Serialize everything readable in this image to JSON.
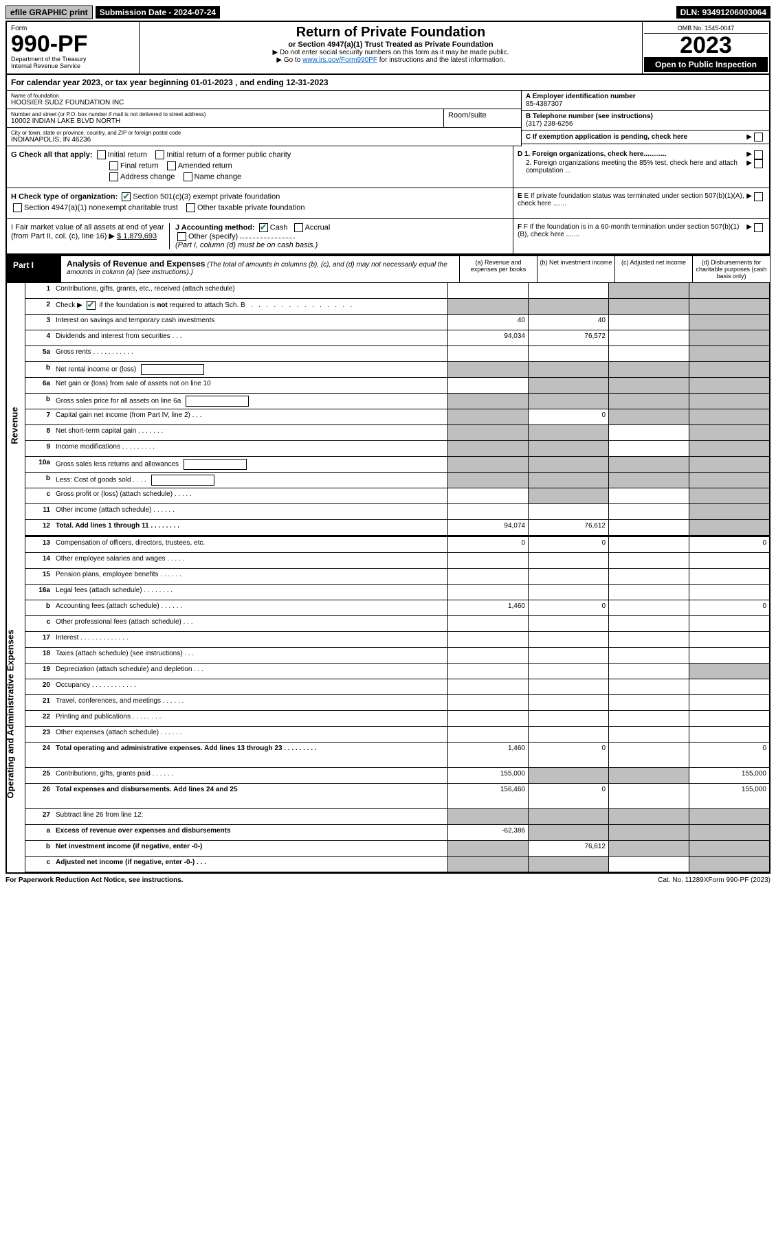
{
  "topbar": {
    "efile": "efile GRAPHIC print",
    "submission": "Submission Date - 2024-07-24",
    "dln": "DLN: 93491206003064"
  },
  "header": {
    "form_label": "Form",
    "form_number": "990-PF",
    "dept1": "Department of the Treasury",
    "dept2": "Internal Revenue Service",
    "title": "Return of Private Foundation",
    "subtitle": "or Section 4947(a)(1) Trust Treated as Private Foundation",
    "instr1": "▶ Do not enter social security numbers on this form as it may be made public.",
    "instr2_pre": "▶ Go to ",
    "instr2_link": "www.irs.gov/Form990PF",
    "instr2_post": " for instructions and the latest information.",
    "omb": "OMB No. 1545-0047",
    "year": "2023",
    "open": "Open to Public Inspection"
  },
  "calyear": "For calendar year 2023, or tax year beginning 01-01-2023                    , and ending 12-31-2023",
  "info": {
    "name_lbl": "Name of foundation",
    "name": "HOOSIER SUDZ FOUNDATION INC",
    "addr_lbl": "Number and street (or P.O. box number if mail is not delivered to street address)",
    "addr": "10002 INDIAN LAKE BLVD NORTH",
    "room_lbl": "Room/suite",
    "city_lbl": "City or town, state or province, country, and ZIP or foreign postal code",
    "city": "INDIANAPOLIS, IN  46236",
    "ein_lbl": "A Employer identification number",
    "ein": "85-4387307",
    "phone_lbl": "B Telephone number (see instructions)",
    "phone": "(317) 238-6256",
    "c_lbl": "C If exemption application is pending, check here",
    "d1": "D 1. Foreign organizations, check here............",
    "d2": "2. Foreign organizations meeting the 85% test, check here and attach computation ...",
    "e": "E  If private foundation status was terminated under section 507(b)(1)(A), check here .......",
    "f": "F  If the foundation is in a 60-month termination under section 507(b)(1)(B), check here .......",
    "g_lbl": "G Check all that apply:",
    "g_opts": [
      "Initial return",
      "Initial return of a former public charity",
      "Final return",
      "Amended return",
      "Address change",
      "Name change"
    ],
    "h_lbl": "H Check type of organization:",
    "h_opts": [
      "Section 501(c)(3) exempt private foundation",
      "Section 4947(a)(1) nonexempt charitable trust",
      "Other taxable private foundation"
    ],
    "i_lbl": "I Fair market value of all assets at end of year (from Part II, col. (c), line 16) ▶",
    "i_val": "$  1,879,693",
    "j_lbl": "J Accounting method:",
    "j_opts": [
      "Cash",
      "Accrual",
      "Other (specify)"
    ],
    "j_note": "(Part I, column (d) must be on cash basis.)"
  },
  "part1": {
    "label": "Part I",
    "title": "Analysis of Revenue and Expenses",
    "note": " (The total of amounts in columns (b), (c), and (d) may not necessarily equal the amounts in column (a) (see instructions).)",
    "cols": {
      "a": "(a)   Revenue and expenses per books",
      "b": "(b)   Net investment income",
      "c": "(c)   Adjusted net income",
      "d": "(d)   Disbursements for charitable purposes (cash basis only)"
    }
  },
  "sidelabels": {
    "revenue": "Revenue",
    "expenses": "Operating and Administrative Expenses"
  },
  "lines": [
    {
      "n": "1",
      "d": "Contributions, gifts, grants, etc., received (attach schedule)",
      "a": "",
      "b": "",
      "c": "grey",
      "dd": "grey"
    },
    {
      "n": "2",
      "d": "Check ▶ ☑ if the foundation is not required to attach Sch. B   .  .  .  .  .  .  .  .  .  .  .  .  .  .  .",
      "a": "grey",
      "b": "grey",
      "c": "grey",
      "dd": "grey",
      "ck": true
    },
    {
      "n": "3",
      "d": "Interest on savings and temporary cash investments",
      "a": "40",
      "b": "40",
      "c": "",
      "dd": "grey"
    },
    {
      "n": "4",
      "d": "Dividends and interest from securities    .   .   .",
      "a": "94,034",
      "b": "76,572",
      "c": "",
      "dd": "grey"
    },
    {
      "n": "5a",
      "d": "Gross rents   .   .   .   .   .   .   .   .   .   .   .",
      "a": "",
      "b": "",
      "c": "",
      "dd": "grey"
    },
    {
      "n": "b",
      "d": "Net rental income or (loss)",
      "a": "grey",
      "b": "grey",
      "c": "grey",
      "dd": "grey",
      "sub": true
    },
    {
      "n": "6a",
      "d": "Net gain or (loss) from sale of assets not on line 10",
      "a": "",
      "b": "grey",
      "c": "grey",
      "dd": "grey"
    },
    {
      "n": "b",
      "d": "Gross sales price for all assets on line 6a",
      "a": "grey",
      "b": "grey",
      "c": "grey",
      "dd": "grey",
      "sub": true
    },
    {
      "n": "7",
      "d": "Capital gain net income (from Part IV, line 2)   .   .   .",
      "a": "grey",
      "b": "0",
      "c": "grey",
      "dd": "grey"
    },
    {
      "n": "8",
      "d": "Net short-term capital gain  .   .   .   .   .   .   .",
      "a": "grey",
      "b": "grey",
      "c": "",
      "dd": "grey"
    },
    {
      "n": "9",
      "d": "Income modifications  .   .   .   .   .   .   .   .   .",
      "a": "grey",
      "b": "grey",
      "c": "",
      "dd": "grey"
    },
    {
      "n": "10a",
      "d": "Gross sales less returns and allowances",
      "a": "grey",
      "b": "grey",
      "c": "grey",
      "dd": "grey",
      "sub": true
    },
    {
      "n": "b",
      "d": "Less: Cost of goods sold   .   .   .   .",
      "a": "grey",
      "b": "grey",
      "c": "grey",
      "dd": "grey",
      "sub": true
    },
    {
      "n": "c",
      "d": "Gross profit or (loss) (attach schedule)   .   .   .   .   .",
      "a": "",
      "b": "grey",
      "c": "",
      "dd": "grey"
    },
    {
      "n": "11",
      "d": "Other income (attach schedule)   .   .   .   .   .   .",
      "a": "",
      "b": "",
      "c": "",
      "dd": "grey"
    },
    {
      "n": "12",
      "d": "Total. Add lines 1 through 11   .   .   .   .   .   .   .   .",
      "a": "94,074",
      "b": "76,612",
      "c": "",
      "dd": "grey",
      "bold": true
    }
  ],
  "explines": [
    {
      "n": "13",
      "d": "Compensation of officers, directors, trustees, etc.",
      "a": "0",
      "b": "0",
      "c": "",
      "dd": "0"
    },
    {
      "n": "14",
      "d": "Other employee salaries and wages   .   .   .   .   .",
      "a": "",
      "b": "",
      "c": "",
      "dd": ""
    },
    {
      "n": "15",
      "d": "Pension plans, employee benefits  .   .   .   .   .   .",
      "a": "",
      "b": "",
      "c": "",
      "dd": ""
    },
    {
      "n": "16a",
      "d": "Legal fees (attach schedule)  .   .   .   .   .   .   .   .",
      "a": "",
      "b": "",
      "c": "",
      "dd": ""
    },
    {
      "n": "b",
      "d": "Accounting fees (attach schedule)  .   .   .   .   .   .",
      "a": "1,460",
      "b": "0",
      "c": "",
      "dd": "0"
    },
    {
      "n": "c",
      "d": "Other professional fees (attach schedule)   .   .   .",
      "a": "",
      "b": "",
      "c": "",
      "dd": ""
    },
    {
      "n": "17",
      "d": "Interest  .   .   .   .   .   .   .   .   .   .   .   .   .",
      "a": "",
      "b": "",
      "c": "",
      "dd": ""
    },
    {
      "n": "18",
      "d": "Taxes (attach schedule) (see instructions)   .   .   .",
      "a": "",
      "b": "",
      "c": "",
      "dd": ""
    },
    {
      "n": "19",
      "d": "Depreciation (attach schedule) and depletion   .   .   .",
      "a": "",
      "b": "",
      "c": "",
      "dd": "grey"
    },
    {
      "n": "20",
      "d": "Occupancy  .   .   .   .   .   .   .   .   .   .   .   .",
      "a": "",
      "b": "",
      "c": "",
      "dd": ""
    },
    {
      "n": "21",
      "d": "Travel, conferences, and meetings  .   .   .   .   .   .",
      "a": "",
      "b": "",
      "c": "",
      "dd": ""
    },
    {
      "n": "22",
      "d": "Printing and publications  .   .   .   .   .   .   .   .",
      "a": "",
      "b": "",
      "c": "",
      "dd": ""
    },
    {
      "n": "23",
      "d": "Other expenses (attach schedule)  .   .   .   .   .   .",
      "a": "",
      "b": "",
      "c": "",
      "dd": ""
    },
    {
      "n": "24",
      "d": "Total operating and administrative expenses. Add lines 13 through 23   .   .   .   .   .   .   .   .   .",
      "a": "1,460",
      "b": "0",
      "c": "",
      "dd": "0",
      "bold": true,
      "tall": true
    },
    {
      "n": "25",
      "d": "Contributions, gifts, grants paid   .   .   .   .   .   .",
      "a": "155,000",
      "b": "grey",
      "c": "grey",
      "dd": "155,000"
    },
    {
      "n": "26",
      "d": "Total expenses and disbursements. Add lines 24 and 25",
      "a": "156,460",
      "b": "0",
      "c": "",
      "dd": "155,000",
      "bold": true,
      "tall": true
    },
    {
      "n": "27",
      "d": "Subtract line 26 from line 12:",
      "a": "grey",
      "b": "grey",
      "c": "grey",
      "dd": "grey"
    },
    {
      "n": "a",
      "d": "Excess of revenue over expenses and disbursements",
      "a": "-62,386",
      "b": "grey",
      "c": "grey",
      "dd": "grey",
      "bold": true
    },
    {
      "n": "b",
      "d": "Net investment income (if negative, enter -0-)",
      "a": "grey",
      "b": "76,612",
      "c": "grey",
      "dd": "grey",
      "bold": true
    },
    {
      "n": "c",
      "d": "Adjusted net income (if negative, enter -0-)   .   .   .",
      "a": "grey",
      "b": "grey",
      "c": "",
      "dd": "grey",
      "bold": true
    }
  ],
  "footer": {
    "left": "For Paperwork Reduction Act Notice, see instructions.",
    "center": "Cat. No. 11289X",
    "right": "Form 990-PF (2023)"
  },
  "colors": {
    "grey": "#bfbfbf"
  }
}
